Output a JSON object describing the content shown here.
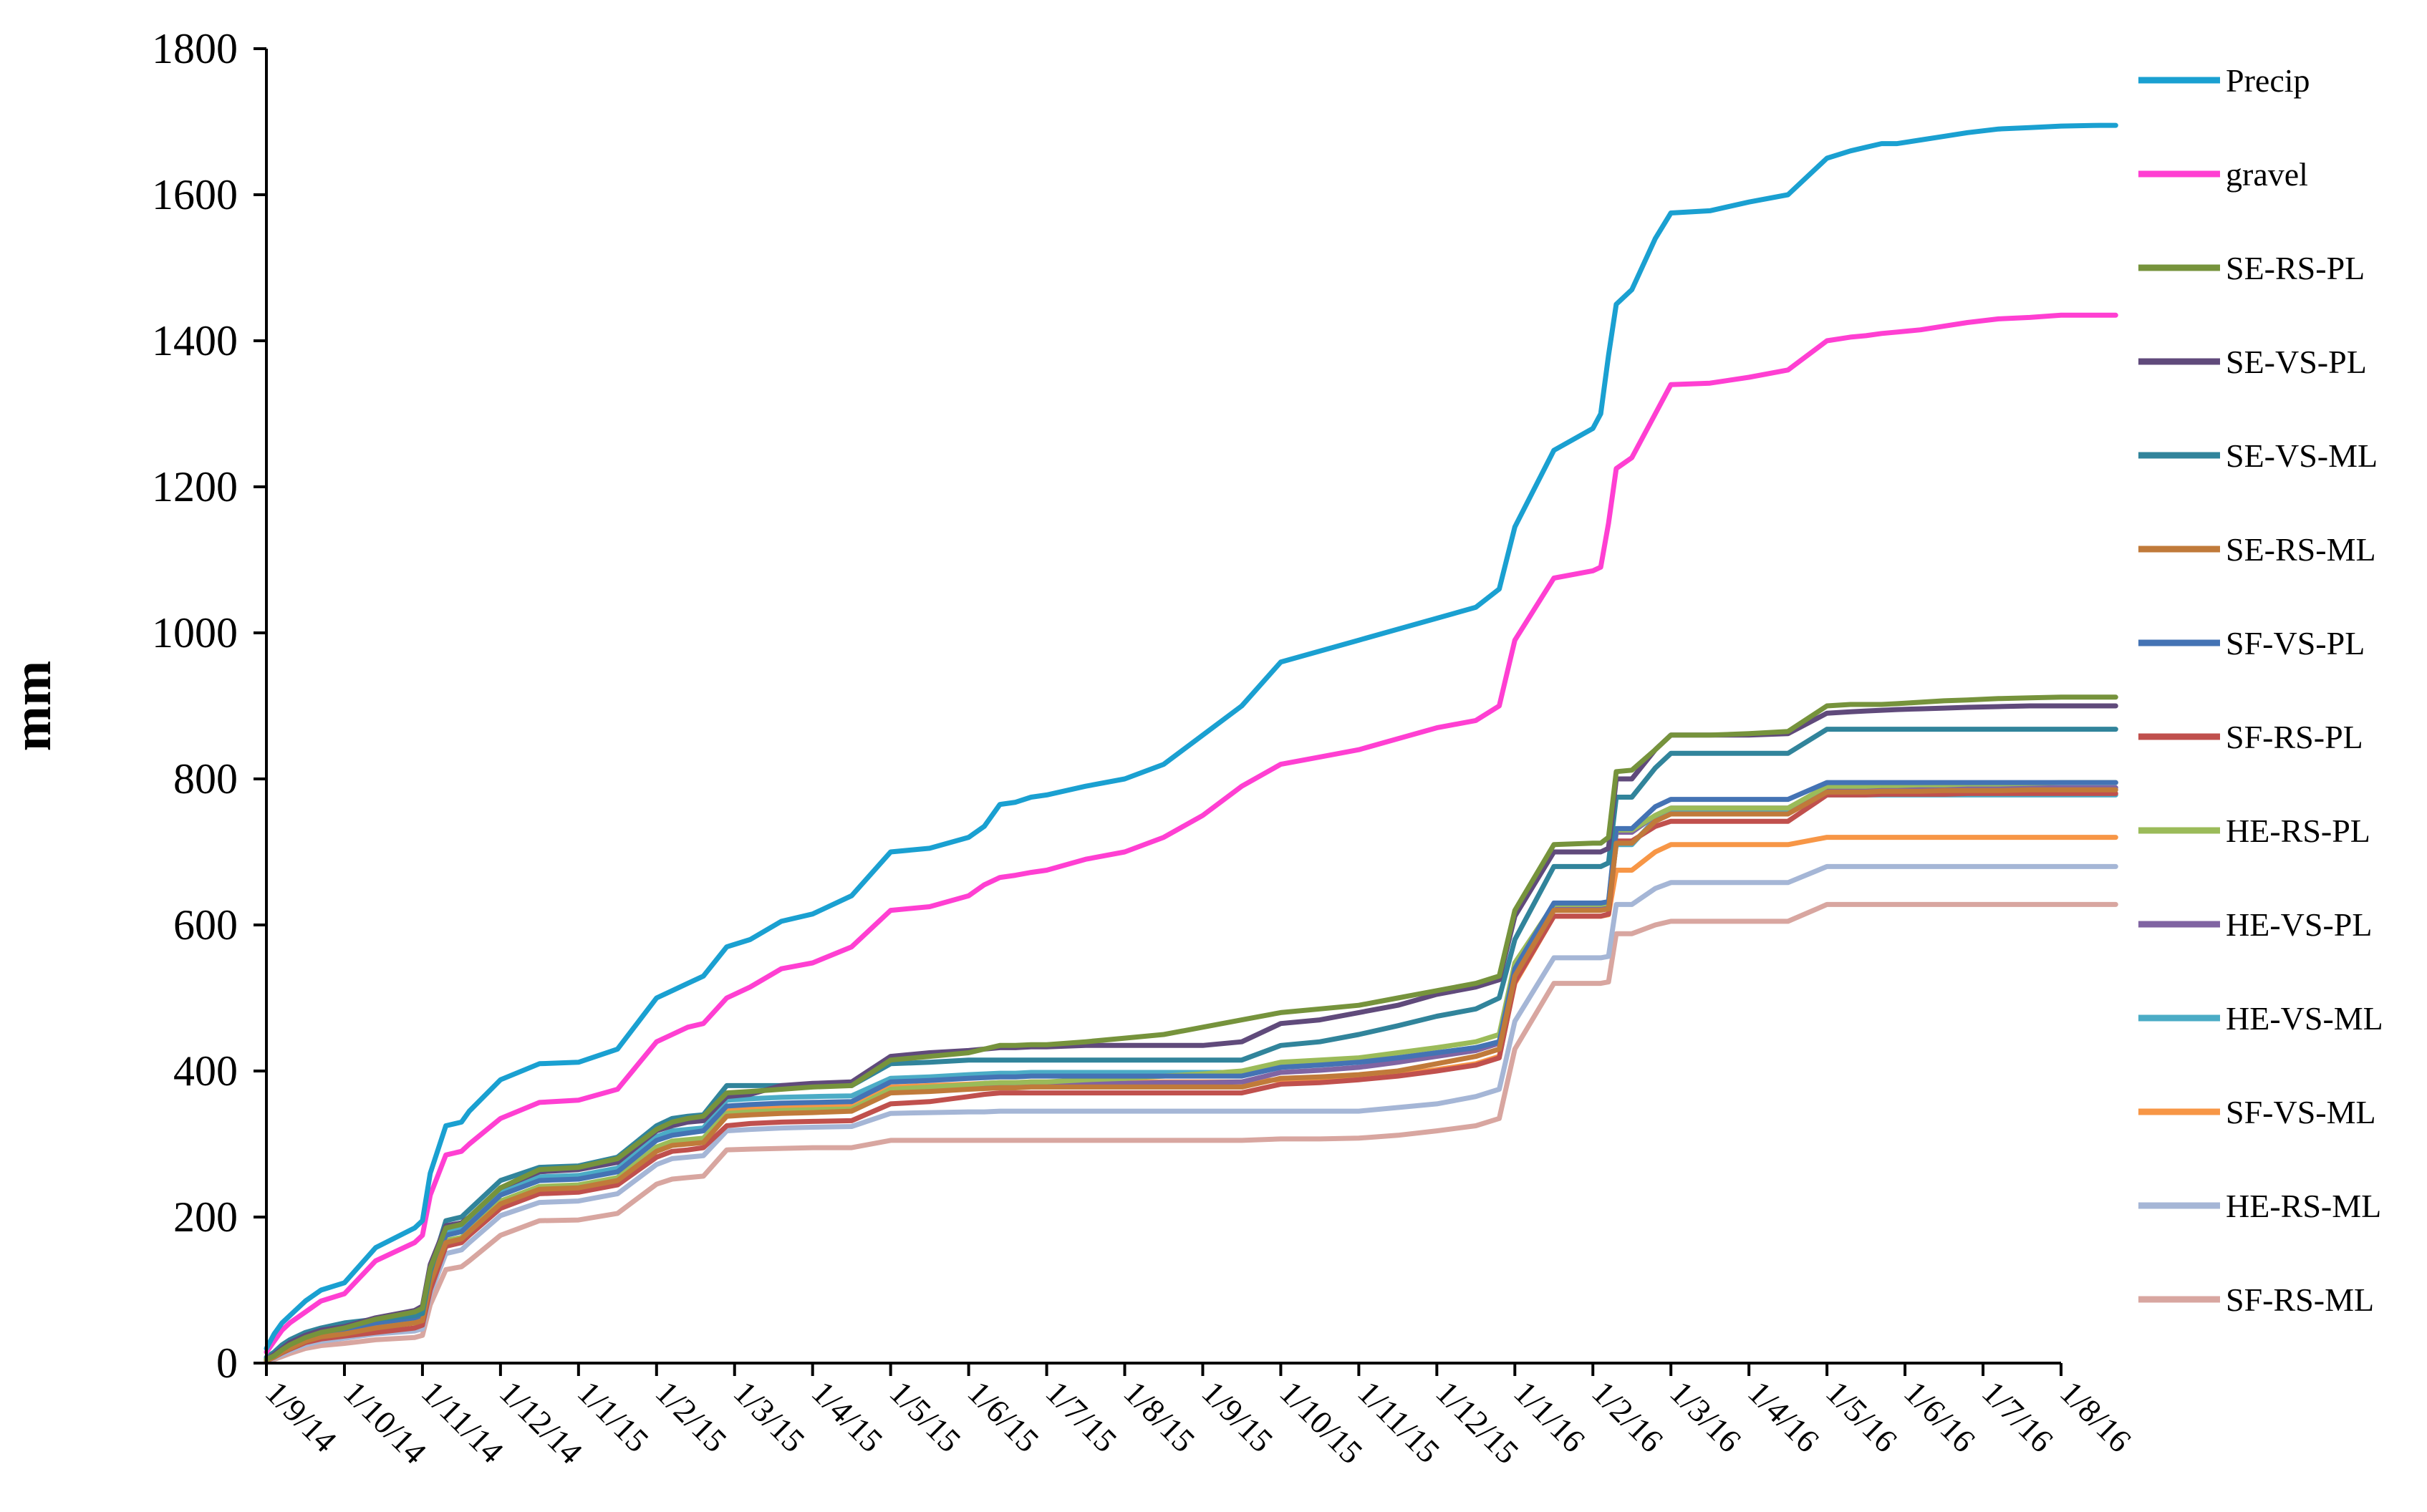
{
  "chart_data": {
    "type": "line",
    "title": "",
    "xlabel": "",
    "ylabel": "mm",
    "ylim": [
      0,
      1800
    ],
    "yticks": [
      0,
      200,
      400,
      600,
      800,
      1000,
      1200,
      1400,
      1600,
      1800
    ],
    "x_tick_labels": [
      "1/9/14",
      "1/10/14",
      "1/11/14",
      "1/12/14",
      "1/1/15",
      "1/2/15",
      "1/3/15",
      "1/4/15",
      "1/5/15",
      "1/6/15",
      "1/7/15",
      "1/8/15",
      "1/9/15",
      "1/10/15",
      "1/11/15",
      "1/12/15",
      "1/1/16",
      "1/2/16",
      "1/3/16",
      "1/4/16",
      "1/5/16",
      "1/6/16",
      "1/7/16",
      "1/8/16"
    ],
    "grid": false,
    "legend_position": "right",
    "x": [
      0,
      0.1,
      0.2,
      0.3,
      0.5,
      0.7,
      1.0,
      1.4,
      1.9,
      2.0,
      2.1,
      2.3,
      2.5,
      2.6,
      3.0,
      3.5,
      4.0,
      4.5,
      5.0,
      5.2,
      5.4,
      5.6,
      5.9,
      6.2,
      6.6,
      7.0,
      7.5,
      8.0,
      8.5,
      9.0,
      9.2,
      9.4,
      9.6,
      9.8,
      10.0,
      10.5,
      11.0,
      11.5,
      12.0,
      12.5,
      13.0,
      13.5,
      14.0,
      14.5,
      15.0,
      15.5,
      15.8,
      16.0,
      16.5,
      17.0,
      17.1,
      17.2,
      17.3,
      17.5,
      17.8,
      18.0,
      18.5,
      19.0,
      19.5,
      20.0,
      20.3,
      20.5,
      20.7,
      20.9,
      21.2,
      21.5,
      21.8,
      22.2,
      22.6,
      23.0,
      23.5,
      23.7
    ],
    "series": [
      {
        "name": "Precip",
        "color": "#1aa0d1",
        "values": [
          20,
          40,
          55,
          65,
          85,
          100,
          110,
          158,
          185,
          195,
          260,
          325,
          330,
          345,
          388,
          410,
          412,
          430,
          500,
          510,
          520,
          530,
          570,
          580,
          605,
          615,
          640,
          700,
          705,
          720,
          735,
          765,
          768,
          775,
          778,
          790,
          800,
          820,
          860,
          900,
          960,
          975,
          990,
          1005,
          1020,
          1035,
          1060,
          1145,
          1250,
          1280,
          1300,
          1380,
          1450,
          1470,
          1540,
          1575,
          1578,
          1590,
          1600,
          1650,
          1660,
          1665,
          1670,
          1670,
          1675,
          1680,
          1685,
          1690,
          1692,
          1694,
          1695,
          1695
        ]
      },
      {
        "name": "gravel",
        "color": "#ff3fd2",
        "values": [
          15,
          30,
          45,
          55,
          70,
          85,
          95,
          140,
          165,
          175,
          230,
          285,
          290,
          300,
          335,
          357,
          360,
          375,
          440,
          450,
          460,
          465,
          500,
          515,
          540,
          548,
          570,
          620,
          625,
          640,
          655,
          665,
          668,
          672,
          675,
          690,
          700,
          720,
          750,
          790,
          820,
          830,
          840,
          855,
          870,
          880,
          900,
          990,
          1075,
          1085,
          1090,
          1150,
          1225,
          1240,
          1300,
          1340,
          1342,
          1350,
          1360,
          1400,
          1405,
          1407,
          1410,
          1412,
          1415,
          1420,
          1425,
          1430,
          1432,
          1435,
          1435,
          1435
        ]
      },
      {
        "name": "SE-RS-PL",
        "color": "#76933c",
        "values": [
          5,
          10,
          18,
          25,
          35,
          42,
          48,
          60,
          70,
          75,
          130,
          185,
          190,
          200,
          240,
          265,
          268,
          280,
          320,
          330,
          335,
          338,
          370,
          372,
          375,
          378,
          380,
          415,
          420,
          425,
          430,
          435,
          435,
          436,
          436,
          440,
          445,
          450,
          460,
          470,
          480,
          485,
          490,
          500,
          510,
          520,
          530,
          620,
          710,
          712,
          712,
          720,
          810,
          812,
          840,
          860,
          860,
          862,
          865,
          900,
          902,
          902,
          902,
          903,
          905,
          907,
          908,
          910,
          911,
          912,
          912,
          912
        ]
      },
      {
        "name": "SE-VS-PL",
        "color": "#604a7b",
        "values": [
          5,
          12,
          20,
          28,
          38,
          45,
          50,
          62,
          72,
          78,
          135,
          188,
          192,
          200,
          240,
          262,
          265,
          275,
          318,
          325,
          330,
          332,
          365,
          368,
          380,
          383,
          385,
          420,
          425,
          428,
          430,
          432,
          432,
          433,
          433,
          435,
          435,
          435,
          435,
          440,
          465,
          470,
          480,
          490,
          505,
          515,
          525,
          612,
          700,
          700,
          700,
          705,
          800,
          800,
          840,
          860,
          860,
          860,
          862,
          890,
          892,
          893,
          894,
          895,
          896,
          897,
          898,
          899,
          900,
          900,
          900,
          900
        ]
      },
      {
        "name": "SE-VS-ML",
        "color": "#31849b",
        "values": [
          8,
          15,
          25,
          32,
          42,
          48,
          55,
          60,
          65,
          68,
          125,
          195,
          200,
          210,
          250,
          268,
          270,
          282,
          325,
          335,
          338,
          340,
          380,
          380,
          380,
          380,
          380,
          410,
          412,
          415,
          415,
          415,
          415,
          415,
          415,
          415,
          415,
          415,
          415,
          415,
          435,
          440,
          450,
          462,
          475,
          485,
          500,
          580,
          680,
          680,
          680,
          685,
          775,
          775,
          815,
          835,
          835,
          835,
          835,
          868,
          868,
          868,
          868,
          868,
          868,
          868,
          868,
          868,
          868,
          868,
          868,
          868
        ]
      },
      {
        "name": "SE-RS-ML",
        "color": "#c07a3a",
        "values": [
          4,
          8,
          15,
          20,
          30,
          36,
          40,
          48,
          55,
          58,
          110,
          165,
          170,
          180,
          218,
          238,
          240,
          250,
          290,
          298,
          300,
          302,
          338,
          340,
          342,
          343,
          345,
          370,
          372,
          375,
          376,
          377,
          377,
          378,
          378,
          378,
          378,
          378,
          378,
          378,
          390,
          392,
          395,
          400,
          410,
          420,
          430,
          530,
          620,
          620,
          620,
          622,
          712,
          712,
          742,
          752,
          752,
          752,
          752,
          782,
          782,
          782,
          783,
          783,
          783,
          784,
          784,
          784,
          785,
          785,
          785,
          785
        ]
      },
      {
        "name": "SF-VS-PL",
        "color": "#4473b4",
        "values": [
          5,
          10,
          17,
          24,
          33,
          40,
          45,
          55,
          62,
          66,
          120,
          175,
          180,
          190,
          230,
          250,
          252,
          262,
          305,
          312,
          315,
          318,
          352,
          354,
          356,
          357,
          358,
          385,
          387,
          390,
          391,
          392,
          392,
          393,
          393,
          393,
          393,
          393,
          393,
          393,
          405,
          408,
          412,
          418,
          425,
          432,
          440,
          540,
          630,
          630,
          630,
          632,
          732,
          732,
          762,
          772,
          772,
          772,
          772,
          795,
          795,
          795,
          795,
          795,
          795,
          795,
          795,
          795,
          795,
          795,
          795,
          795
        ]
      },
      {
        "name": "SF-RS-PL",
        "color": "#c0504d",
        "values": [
          3,
          8,
          14,
          19,
          28,
          33,
          37,
          42,
          48,
          52,
          100,
          160,
          165,
          175,
          212,
          232,
          234,
          244,
          282,
          290,
          292,
          295,
          325,
          328,
          330,
          331,
          332,
          355,
          358,
          365,
          368,
          370,
          370,
          370,
          370,
          370,
          370,
          370,
          370,
          370,
          382,
          384,
          388,
          393,
          400,
          408,
          418,
          522,
          612,
          612,
          612,
          615,
          715,
          715,
          735,
          742,
          742,
          742,
          742,
          778,
          778,
          778,
          779,
          779,
          779,
          779,
          780,
          780,
          780,
          780,
          780,
          780
        ]
      },
      {
        "name": "HE-RS-PL",
        "color": "#9bbb59",
        "values": [
          4,
          9,
          16,
          22,
          31,
          37,
          42,
          50,
          57,
          60,
          112,
          168,
          172,
          182,
          222,
          242,
          244,
          254,
          296,
          304,
          306,
          308,
          342,
          344,
          346,
          347,
          348,
          375,
          378,
          381,
          383,
          384,
          384,
          385,
          385,
          388,
          390,
          393,
          396,
          400,
          412,
          415,
          418,
          425,
          432,
          440,
          450,
          548,
          628,
          628,
          628,
          630,
          730,
          730,
          750,
          760,
          760,
          760,
          760,
          790,
          790,
          790,
          791,
          791,
          792,
          792,
          793,
          793,
          794,
          795,
          795,
          795
        ]
      },
      {
        "name": "HE-VS-PL",
        "color": "#8064a2",
        "values": [
          4,
          9,
          15,
          21,
          30,
          36,
          41,
          49,
          56,
          59,
          111,
          166,
          170,
          180,
          220,
          240,
          242,
          252,
          294,
          302,
          304,
          306,
          340,
          342,
          344,
          345,
          346,
          372,
          375,
          378,
          380,
          381,
          381,
          382,
          382,
          383,
          383,
          384,
          384,
          385,
          398,
          401,
          405,
          412,
          420,
          428,
          438,
          535,
          625,
          625,
          625,
          627,
          727,
          727,
          750,
          760,
          760,
          760,
          760,
          788,
          788,
          788,
          788,
          788,
          788,
          788,
          788,
          788,
          788,
          788,
          788,
          788
        ]
      },
      {
        "name": "HE-VS-ML",
        "color": "#4bacc6",
        "values": [
          6,
          12,
          20,
          27,
          37,
          43,
          48,
          55,
          62,
          65,
          118,
          180,
          185,
          195,
          235,
          255,
          257,
          267,
          310,
          318,
          320,
          322,
          360,
          362,
          364,
          365,
          366,
          390,
          392,
          395,
          396,
          397,
          397,
          398,
          398,
          398,
          398,
          398,
          398,
          398,
          408,
          410,
          412,
          418,
          425,
          432,
          440,
          538,
          628,
          628,
          628,
          630,
          710,
          710,
          745,
          755,
          755,
          755,
          755,
          778,
          778,
          778,
          778,
          778,
          778,
          778,
          778,
          778,
          778,
          778,
          778,
          778
        ]
      },
      {
        "name": "SF-VS-ML",
        "color": "#f79646",
        "values": [
          5,
          10,
          18,
          24,
          34,
          39,
          44,
          50,
          56,
          60,
          112,
          165,
          170,
          180,
          220,
          240,
          242,
          252,
          292,
          300,
          302,
          305,
          348,
          350,
          352,
          353,
          354,
          378,
          380,
          382,
          383,
          384,
          384,
          385,
          385,
          385,
          385,
          385,
          385,
          385,
          388,
          388,
          390,
          395,
          402,
          410,
          420,
          520,
          612,
          612,
          612,
          614,
          675,
          675,
          700,
          710,
          710,
          710,
          710,
          720,
          720,
          720,
          720,
          720,
          720,
          720,
          720,
          720,
          720,
          720,
          720,
          720
        ]
      },
      {
        "name": "HE-RS-ML",
        "color": "#a5b6d6",
        "values": [
          3,
          7,
          12,
          17,
          25,
          30,
          34,
          40,
          44,
          47,
          95,
          150,
          155,
          165,
          202,
          220,
          222,
          232,
          272,
          280,
          282,
          284,
          318,
          320,
          322,
          323,
          324,
          342,
          343,
          344,
          344,
          345,
          345,
          345,
          345,
          345,
          345,
          345,
          345,
          345,
          345,
          345,
          345,
          350,
          355,
          365,
          375,
          468,
          555,
          555,
          555,
          557,
          628,
          628,
          650,
          658,
          658,
          658,
          658,
          680,
          680,
          680,
          680,
          680,
          680,
          680,
          680,
          680,
          680,
          680,
          680,
          680
        ]
      },
      {
        "name": "SF-RS-ML",
        "color": "#d8a6a0",
        "values": [
          2,
          5,
          9,
          13,
          20,
          24,
          27,
          32,
          35,
          38,
          80,
          128,
          132,
          140,
          175,
          195,
          196,
          205,
          245,
          252,
          254,
          256,
          292,
          293,
          294,
          295,
          295,
          305,
          305,
          305,
          305,
          305,
          305,
          305,
          305,
          305,
          305,
          305,
          305,
          305,
          307,
          307,
          308,
          312,
          318,
          325,
          335,
          430,
          520,
          520,
          520,
          522,
          588,
          588,
          600,
          605,
          605,
          605,
          605,
          628,
          628,
          628,
          628,
          628,
          628,
          628,
          628,
          628,
          628,
          628,
          628,
          628
        ]
      }
    ]
  }
}
